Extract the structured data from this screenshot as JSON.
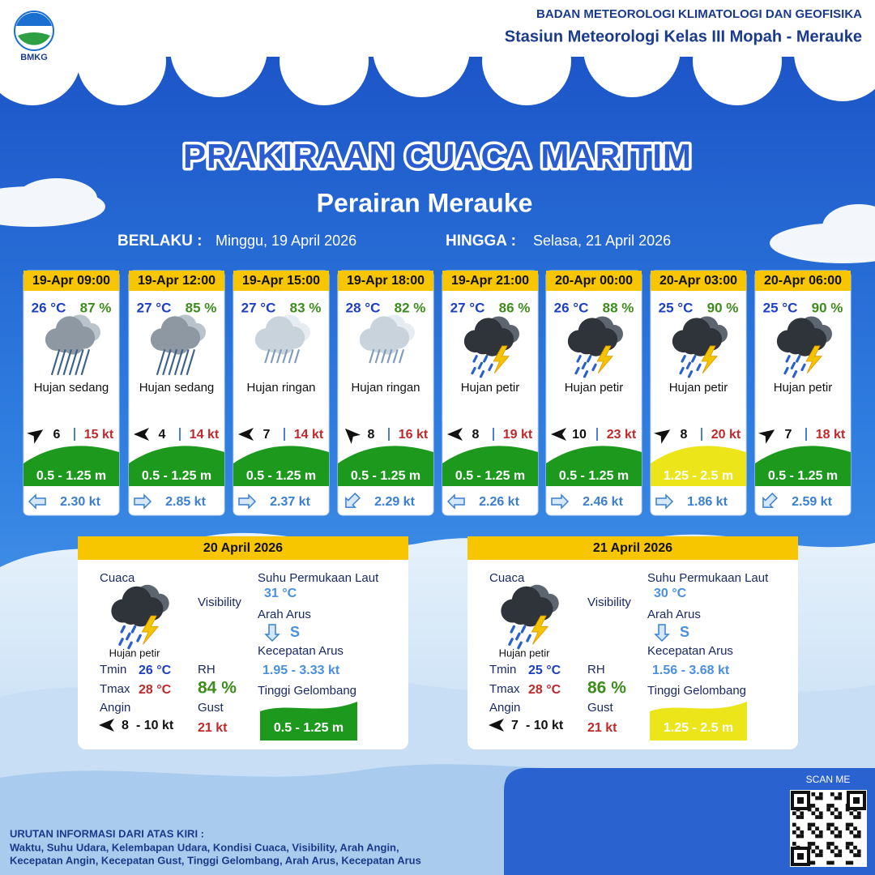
{
  "header": {
    "logo_text": "BMKG",
    "org": "BADAN METEOROLOGI KLIMATOLOGI DAN GEOFISIKA",
    "station": "Stasiun Meteorologi Kelas III Mopah - Merauke"
  },
  "title": "PRAKIRAAN CUACA MARITIM",
  "subtitle": "Perairan Merauke",
  "validity": {
    "from_label": "BERLAKU :",
    "from": "Minggu, 19 April 2026",
    "to_label": "HINGGA :",
    "to": "Selasa, 21 April 2026"
  },
  "forecasts": [
    {
      "time": "19-Apr 09:00",
      "temp": "26 °C",
      "rh": "87 %",
      "weather": "Hujan sedang",
      "wind": "6",
      "gust": "15 kt",
      "wave": "0.5 - 1.25 m",
      "wave_color": "#1d9a1d",
      "current": "2.30 kt"
    },
    {
      "time": "19-Apr 12:00",
      "temp": "27 °C",
      "rh": "85 %",
      "weather": "Hujan sedang",
      "wind": "4",
      "gust": "14 kt",
      "wave": "0.5 - 1.25 m",
      "wave_color": "#1d9a1d",
      "current": "2.85 kt"
    },
    {
      "time": "19-Apr 15:00",
      "temp": "27 °C",
      "rh": "83 %",
      "weather": "Hujan ringan",
      "wind": "7",
      "gust": "14 kt",
      "wave": "0.5 - 1.25 m",
      "wave_color": "#1d9a1d",
      "current": "2.37 kt"
    },
    {
      "time": "19-Apr 18:00",
      "temp": "28 °C",
      "rh": "82 %",
      "weather": "Hujan ringan",
      "wind": "8",
      "gust": "16 kt",
      "wave": "0.5 - 1.25 m",
      "wave_color": "#1d9a1d",
      "current": "2.29 kt"
    },
    {
      "time": "19-Apr 21:00",
      "temp": "27 °C",
      "rh": "86 %",
      "weather": "Hujan petir",
      "wind": "8",
      "gust": "19 kt",
      "wave": "0.5 - 1.25 m",
      "wave_color": "#1d9a1d",
      "current": "2.26 kt"
    },
    {
      "time": "20-Apr 00:00",
      "temp": "26 °C",
      "rh": "88 %",
      "weather": "Hujan petir",
      "wind": "10",
      "gust": "23 kt",
      "wave": "0.5 - 1.25 m",
      "wave_color": "#1d9a1d",
      "current": "2.46 kt"
    },
    {
      "time": "20-Apr 03:00",
      "temp": "25 °C",
      "rh": "90 %",
      "weather": "Hujan petir",
      "wind": "8",
      "gust": "20 kt",
      "wave": "1.25 - 2.5 m",
      "wave_color": "#ece51a",
      "current": "1.86 kt"
    },
    {
      "time": "20-Apr 06:00",
      "temp": "25 °C",
      "rh": "90 %",
      "weather": "Hujan petir",
      "wind": "7",
      "gust": "18 kt",
      "wave": "0.5 - 1.25 m",
      "wave_color": "#1d9a1d",
      "current": "2.59 kt"
    }
  ],
  "daily_labels": {
    "weather": "Cuaca",
    "tmin": "Tmin",
    "tmax": "Tmax",
    "wind": "Angin",
    "visibility": "Visibility",
    "rh": "RH",
    "gust": "Gust",
    "sst": "Suhu Permukaan Laut",
    "current_dir": "Arah Arus",
    "current_speed": "Kecepatan Arus",
    "wave": "Tinggi Gelombang"
  },
  "daily": [
    {
      "date": "20 April 2026",
      "weather": "Hujan petir",
      "tmin": "26 °C",
      "tmax": "28 °C",
      "wind": "8",
      "wind_max": "- 10 kt",
      "rh": "84 %",
      "gust": "21 kt",
      "sst": "31 °C",
      "current_dir": "S",
      "current_speed": "1.95 - 3.33 kt",
      "wave": "0.5 - 1.25 m",
      "wave_color": "#1d9a1d"
    },
    {
      "date": "21 April 2026",
      "weather": "Hujan petir",
      "tmin": "25 °C",
      "tmax": "28 °C",
      "wind": "7",
      "wind_max": "- 10 kt",
      "rh": "86 %",
      "gust": "21 kt",
      "sst": "30 °C",
      "current_dir": "S",
      "current_speed": "1.56 - 3.68 kt",
      "wave": "1.25 - 2.5 m",
      "wave_color": "#ece51a"
    }
  ],
  "footer": {
    "qr_label": "SCAN ME",
    "note_title": "URUTAN INFORMASI DARI ATAS KIRI :",
    "note_line1": "Waktu, Suhu Udara, Kelembapan Udara, Kondisi Cuaca, Visibility, Arah Angin,",
    "note_line2": "Kecepatan Angin, Kecepatan Gust, Tinggi Gelombang, Arah Arus, Kecepatan Arus"
  }
}
